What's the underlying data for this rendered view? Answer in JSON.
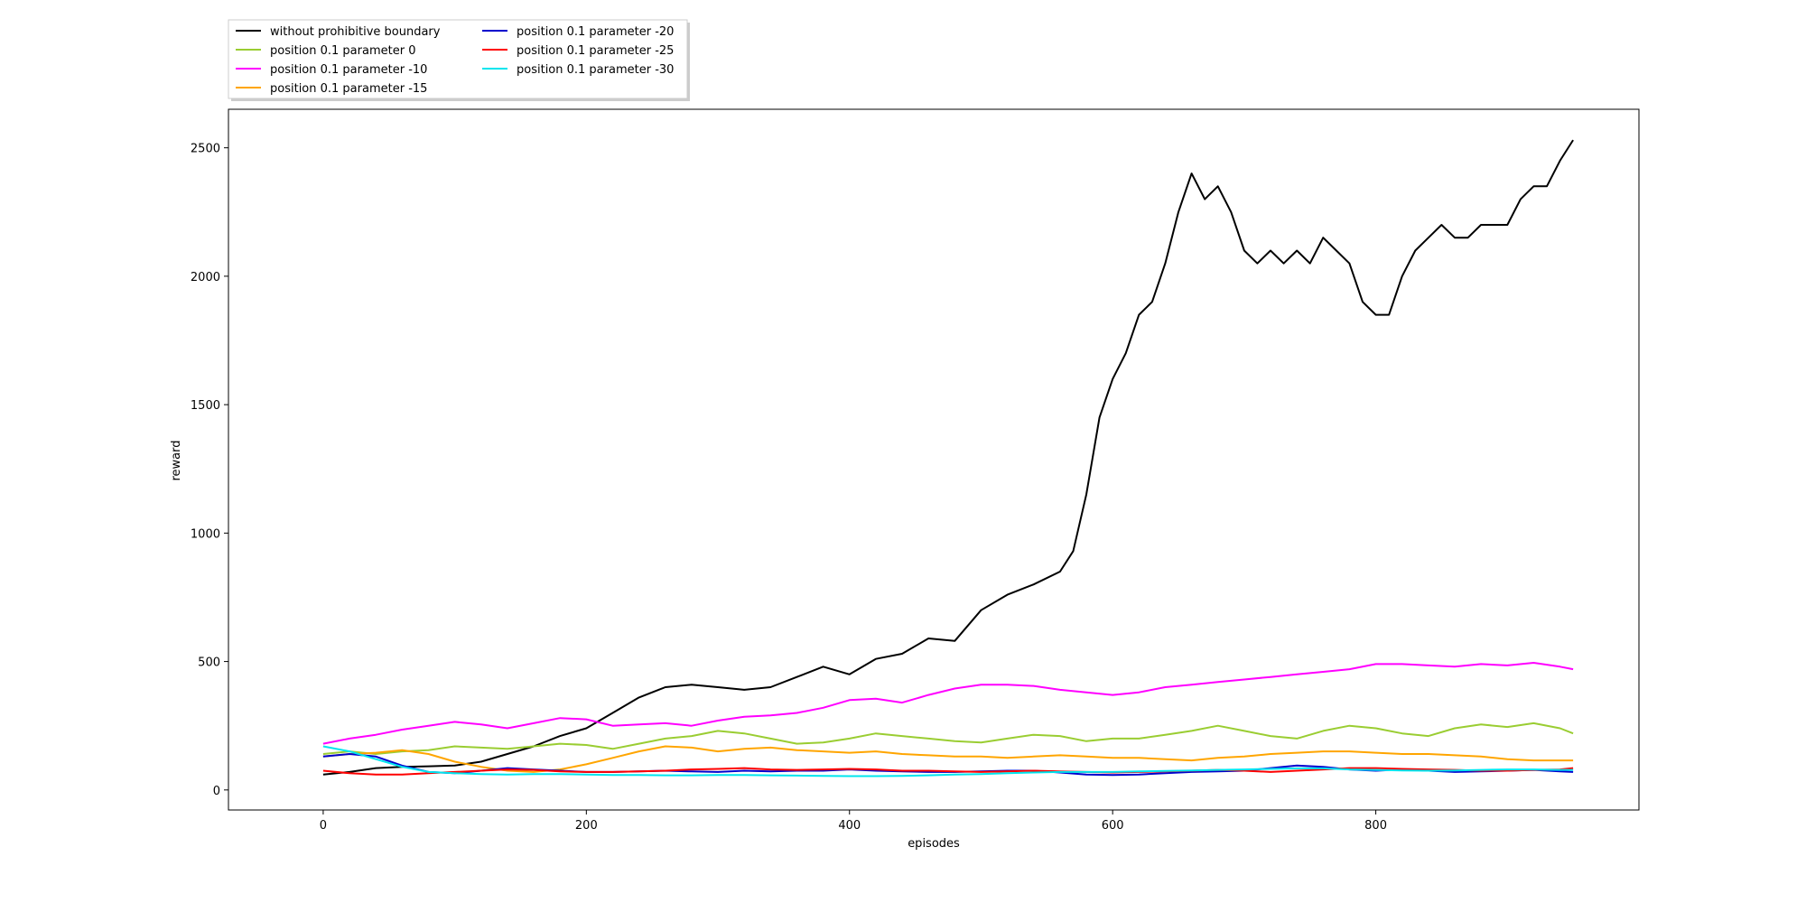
{
  "chart_data": {
    "type": "line",
    "title": "",
    "xlabel": "episodes",
    "ylabel": "reward",
    "xlim": [
      -72,
      1000
    ],
    "ylim": [
      -78,
      2650
    ],
    "xticks": [
      0,
      200,
      400,
      600,
      800
    ],
    "yticks": [
      0,
      500,
      1000,
      1500,
      2000,
      2500
    ],
    "grid": false,
    "legend": {
      "position": "above-top-left",
      "columns": 2
    },
    "series": [
      {
        "name": "without prohibitive boundary",
        "color": "#000000",
        "x": [
          0,
          20,
          40,
          60,
          80,
          100,
          120,
          140,
          160,
          180,
          200,
          220,
          240,
          260,
          280,
          300,
          320,
          340,
          360,
          380,
          400,
          420,
          440,
          460,
          480,
          500,
          520,
          540,
          560,
          570,
          580,
          590,
          600,
          610,
          620,
          630,
          640,
          650,
          660,
          670,
          680,
          690,
          700,
          710,
          720,
          730,
          740,
          750,
          760,
          770,
          780,
          790,
          800,
          810,
          820,
          830,
          840,
          850,
          860,
          870,
          880,
          890,
          900,
          910,
          920,
          930,
          940,
          950
        ],
        "y": [
          60,
          70,
          85,
          90,
          92,
          95,
          110,
          140,
          170,
          210,
          240,
          300,
          360,
          400,
          410,
          400,
          390,
          400,
          440,
          480,
          450,
          510,
          530,
          590,
          580,
          700,
          760,
          800,
          850,
          930,
          1150,
          1450,
          1600,
          1700,
          1850,
          1900,
          2050,
          2250,
          2400,
          2300,
          2350,
          2250,
          2100,
          2050,
          2100,
          2050,
          2100,
          2050,
          2150,
          2100,
          2050,
          1900,
          1850,
          1850,
          2000,
          2100,
          2150,
          2200,
          2150,
          2150,
          2200,
          2200,
          2200,
          2300,
          2350,
          2350,
          2450,
          2530
        ]
      },
      {
        "name": "position 0.1 parameter 0",
        "color": "#9acd32",
        "x": [
          0,
          20,
          40,
          60,
          80,
          100,
          120,
          140,
          160,
          180,
          200,
          220,
          240,
          260,
          280,
          300,
          320,
          340,
          360,
          380,
          400,
          420,
          440,
          460,
          480,
          500,
          520,
          540,
          560,
          580,
          600,
          620,
          640,
          660,
          680,
          700,
          720,
          740,
          760,
          780,
          800,
          820,
          840,
          860,
          880,
          900,
          920,
          940,
          950
        ],
        "y": [
          140,
          150,
          140,
          150,
          155,
          170,
          165,
          160,
          170,
          180,
          175,
          160,
          180,
          200,
          210,
          230,
          220,
          200,
          180,
          185,
          200,
          220,
          210,
          200,
          190,
          185,
          200,
          215,
          210,
          190,
          200,
          200,
          215,
          230,
          250,
          230,
          210,
          200,
          230,
          250,
          240,
          220,
          210,
          240,
          255,
          245,
          260,
          240,
          220
        ]
      },
      {
        "name": "position 0.1 parameter -10",
        "color": "#ff00ff",
        "x": [
          0,
          20,
          40,
          60,
          80,
          100,
          120,
          140,
          160,
          180,
          200,
          220,
          240,
          260,
          280,
          300,
          320,
          340,
          360,
          380,
          400,
          420,
          440,
          460,
          480,
          500,
          520,
          540,
          560,
          580,
          600,
          620,
          640,
          660,
          680,
          700,
          720,
          740,
          760,
          780,
          800,
          820,
          840,
          860,
          880,
          900,
          920,
          940,
          950
        ],
        "y": [
          180,
          200,
          215,
          235,
          250,
          265,
          255,
          240,
          260,
          280,
          275,
          250,
          255,
          260,
          250,
          270,
          285,
          290,
          300,
          320,
          350,
          355,
          340,
          370,
          395,
          410,
          410,
          405,
          390,
          380,
          370,
          380,
          400,
          410,
          420,
          430,
          440,
          450,
          460,
          470,
          490,
          490,
          485,
          480,
          490,
          485,
          495,
          480,
          470
        ]
      },
      {
        "name": "position 0.1 parameter -15",
        "color": "#ffa500",
        "x": [
          0,
          20,
          40,
          60,
          80,
          100,
          120,
          140,
          160,
          180,
          200,
          220,
          240,
          260,
          280,
          300,
          320,
          340,
          360,
          380,
          400,
          420,
          440,
          460,
          480,
          500,
          520,
          540,
          560,
          580,
          600,
          620,
          640,
          660,
          680,
          700,
          720,
          740,
          760,
          780,
          800,
          820,
          840,
          860,
          880,
          900,
          920,
          940,
          950
        ],
        "y": [
          130,
          140,
          145,
          155,
          140,
          110,
          90,
          75,
          70,
          80,
          100,
          125,
          150,
          170,
          165,
          150,
          160,
          165,
          155,
          150,
          145,
          150,
          140,
          135,
          130,
          130,
          125,
          130,
          135,
          130,
          125,
          125,
          120,
          115,
          125,
          130,
          140,
          145,
          150,
          150,
          145,
          140,
          140,
          135,
          130,
          120,
          115,
          115,
          115
        ]
      },
      {
        "name": "position 0.1 parameter -20",
        "color": "#0000cd",
        "x": [
          0,
          20,
          40,
          60,
          80,
          100,
          120,
          140,
          160,
          180,
          200,
          220,
          240,
          260,
          280,
          300,
          320,
          340,
          360,
          380,
          400,
          420,
          440,
          460,
          480,
          500,
          520,
          540,
          560,
          580,
          600,
          620,
          640,
          660,
          680,
          700,
          720,
          740,
          760,
          780,
          800,
          820,
          840,
          860,
          880,
          900,
          920,
          940,
          950
        ],
        "y": [
          130,
          140,
          130,
          95,
          70,
          65,
          75,
          85,
          80,
          75,
          70,
          70,
          72,
          75,
          72,
          70,
          75,
          72,
          75,
          75,
          80,
          75,
          72,
          70,
          70,
          72,
          75,
          75,
          68,
          60,
          58,
          60,
          65,
          70,
          72,
          75,
          85,
          95,
          90,
          80,
          75,
          80,
          75,
          70,
          72,
          75,
          78,
          72,
          70
        ]
      },
      {
        "name": "position 0.1 parameter -25",
        "color": "#ff0000",
        "x": [
          0,
          20,
          40,
          60,
          80,
          100,
          120,
          140,
          160,
          180,
          200,
          220,
          240,
          260,
          280,
          300,
          320,
          340,
          360,
          380,
          400,
          420,
          440,
          460,
          480,
          500,
          520,
          540,
          560,
          580,
          600,
          620,
          640,
          660,
          680,
          700,
          720,
          740,
          760,
          780,
          800,
          820,
          840,
          860,
          880,
          900,
          920,
          940,
          950
        ],
        "y": [
          75,
          65,
          60,
          60,
          65,
          70,
          75,
          80,
          78,
          72,
          70,
          70,
          72,
          75,
          80,
          82,
          85,
          80,
          78,
          80,
          82,
          80,
          75,
          75,
          72,
          70,
          72,
          75,
          72,
          70,
          68,
          70,
          72,
          75,
          78,
          75,
          70,
          75,
          80,
          85,
          85,
          82,
          80,
          78,
          75,
          75,
          78,
          80,
          85
        ]
      },
      {
        "name": "position 0.1 parameter -30",
        "color": "#00e5ee",
        "x": [
          0,
          20,
          40,
          60,
          80,
          100,
          120,
          140,
          160,
          180,
          200,
          220,
          240,
          260,
          280,
          300,
          320,
          340,
          360,
          380,
          400,
          420,
          440,
          460,
          480,
          500,
          520,
          540,
          560,
          580,
          600,
          620,
          640,
          660,
          680,
          700,
          720,
          740,
          760,
          780,
          800,
          820,
          840,
          860,
          880,
          900,
          920,
          940,
          950
        ],
        "y": [
          170,
          150,
          120,
          90,
          70,
          65,
          62,
          60,
          62,
          62,
          60,
          58,
          58,
          57,
          57,
          58,
          58,
          57,
          56,
          55,
          54,
          54,
          55,
          57,
          60,
          62,
          65,
          68,
          70,
          70,
          70,
          72,
          74,
          76,
          78,
          80,
          82,
          84,
          84,
          80,
          78,
          76,
          75,
          76,
          78,
          80,
          80,
          78,
          78
        ]
      }
    ]
  }
}
